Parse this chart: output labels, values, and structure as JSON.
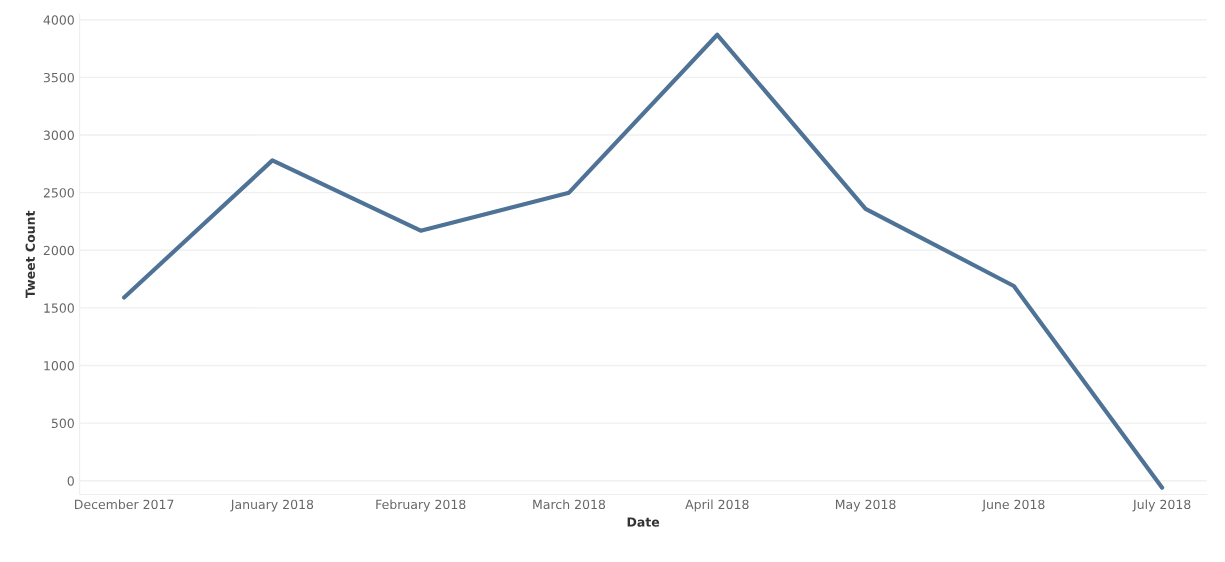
{
  "chart_data": {
    "type": "line",
    "xlabel": "Date",
    "ylabel": "Tweet Count",
    "categories": [
      "December 2017",
      "January 2018",
      "February 2018",
      "March 2018",
      "April 2018",
      "May 2018",
      "June 2018",
      "July 2018"
    ],
    "series": [
      {
        "color": "#4f7396",
        "values": [
          1590,
          2780,
          2170,
          2500,
          3870,
          2360,
          1690,
          -60
        ]
      }
    ],
    "ylim": [
      -120,
      4050
    ],
    "yticks": [
      0,
      500,
      1000,
      1500,
      2000,
      2500,
      3000,
      3500,
      4000
    ],
    "grid": "y",
    "marker": "none",
    "line_style": "solid"
  }
}
